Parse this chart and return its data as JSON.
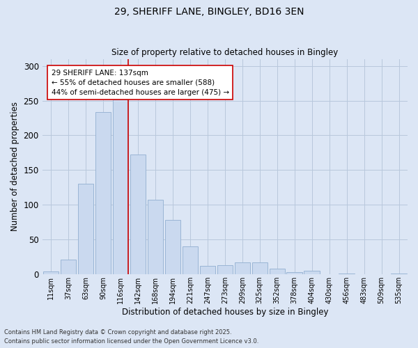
{
  "title1": "29, SHERIFF LANE, BINGLEY, BD16 3EN",
  "title2": "Size of property relative to detached houses in Bingley",
  "xlabel": "Distribution of detached houses by size in Bingley",
  "ylabel": "Number of detached properties",
  "categories": [
    "11sqm",
    "37sqm",
    "63sqm",
    "90sqm",
    "116sqm",
    "142sqm",
    "168sqm",
    "194sqm",
    "221sqm",
    "247sqm",
    "273sqm",
    "299sqm",
    "325sqm",
    "352sqm",
    "378sqm",
    "404sqm",
    "430sqm",
    "456sqm",
    "483sqm",
    "509sqm",
    "535sqm"
  ],
  "values": [
    4,
    21,
    130,
    233,
    252,
    172,
    107,
    78,
    40,
    12,
    13,
    17,
    17,
    8,
    3,
    5,
    0,
    1,
    0,
    0,
    1
  ],
  "bar_color": "#cad9ef",
  "bar_edge_color": "#9ab5d5",
  "grid_color": "#b8c8dc",
  "background_color": "#dce6f5",
  "vline_x_index": 4,
  "vline_color": "#cc0000",
  "annotation_text": "29 SHERIFF LANE: 137sqm\n← 55% of detached houses are smaller (588)\n44% of semi-detached houses are larger (475) →",
  "annotation_box_color": "#ffffff",
  "annotation_box_edge": "#cc0000",
  "footnote1": "Contains HM Land Registry data © Crown copyright and database right 2025.",
  "footnote2": "Contains public sector information licensed under the Open Government Licence v3.0.",
  "ylim": [
    0,
    310
  ],
  "yticks": [
    0,
    50,
    100,
    150,
    200,
    250,
    300
  ]
}
